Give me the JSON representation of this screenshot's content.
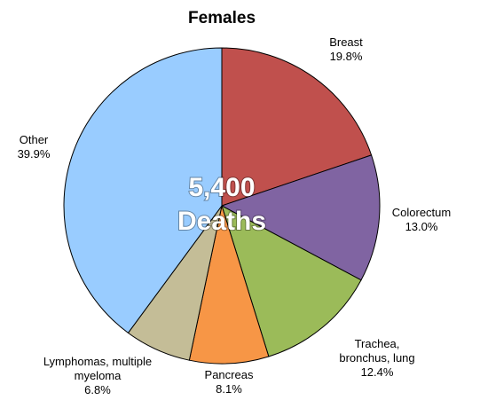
{
  "chart_data": {
    "type": "pie",
    "title": "Females",
    "categories": [
      "Breast",
      "Colorectum",
      "Trachea, bronchus, lung",
      "Pancreas",
      "Lymphomas, multiple myeloma",
      "Other"
    ],
    "values": [
      19.8,
      13.0,
      12.4,
      8.1,
      6.8,
      39.9
    ],
    "value_labels": [
      "19.8%",
      "13.0%",
      "12.4%",
      "8.1%",
      "6.8%",
      "39.9%"
    ],
    "colors": [
      "#c0504d",
      "#8064a2",
      "#9bbb59",
      "#f79646",
      "#c4bd97",
      "#99ccff"
    ],
    "annotations": [
      "5,400",
      "Deaths"
    ]
  }
}
